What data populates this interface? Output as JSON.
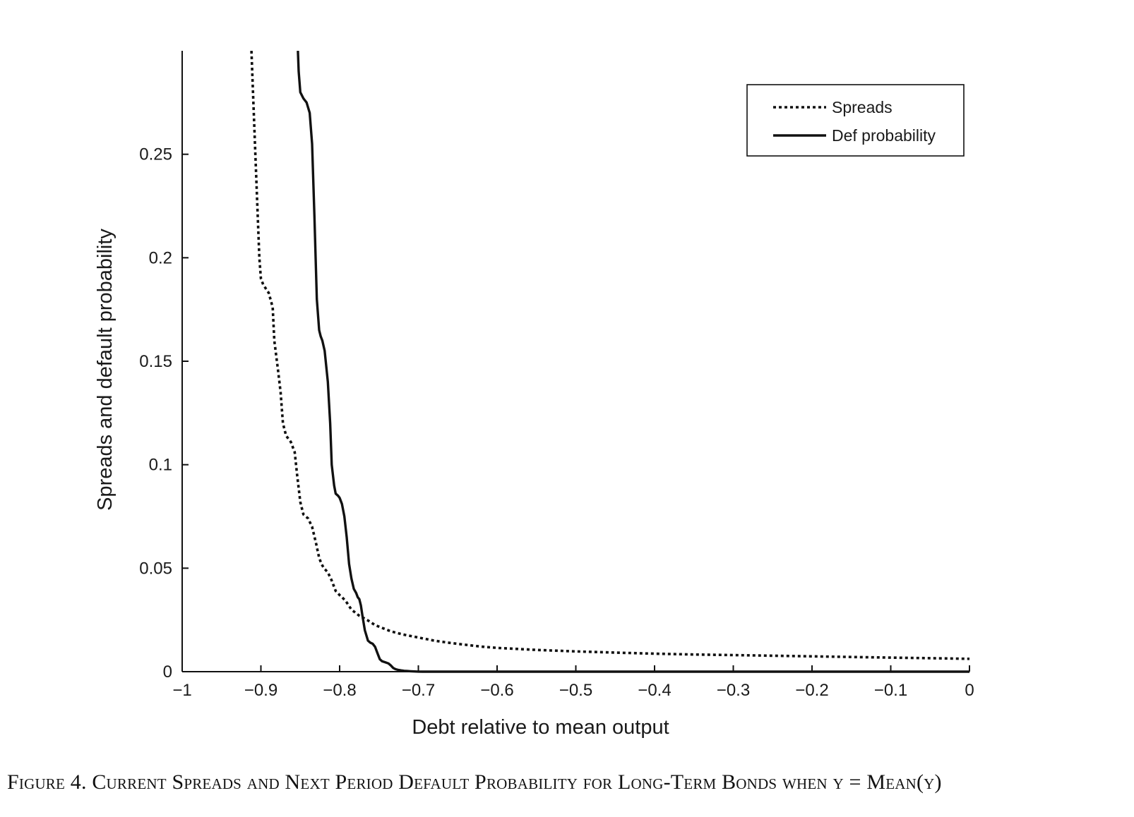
{
  "caption": "Figure 4. Current Spreads and Next Period Default Probability for Long-Term Bonds when y = Mean(y)",
  "chart_data": {
    "type": "line",
    "title": "",
    "xlabel": "Debt relative to mean output",
    "ylabel": "Spreads and default probability",
    "xlim": [
      -1,
      0
    ],
    "ylim": [
      0,
      0.3
    ],
    "xticks": [
      -1,
      -0.9,
      -0.8,
      -0.7,
      -0.6,
      -0.5,
      -0.4,
      -0.3,
      -0.2,
      -0.1,
      0
    ],
    "xtick_labels": [
      "−1",
      "−0.9",
      "−0.8",
      "−0.7",
      "−0.6",
      "−0.5",
      "−0.4",
      "−0.3",
      "−0.2",
      "−0.1",
      "0"
    ],
    "yticks": [
      0,
      0.05,
      0.1,
      0.15,
      0.2,
      0.25
    ],
    "ytick_labels": [
      "0",
      "0.05",
      "0.1",
      "0.15",
      "0.2",
      "0.25"
    ],
    "grid": false,
    "legend_position": "top-right",
    "series": [
      {
        "name": "Spreads",
        "style": "dotted",
        "color": "#111111",
        "x": [
          -0.912,
          -0.91,
          -0.905,
          -0.902,
          -0.9,
          -0.897,
          -0.89,
          -0.885,
          -0.883,
          -0.878,
          -0.875,
          -0.872,
          -0.868,
          -0.862,
          -0.857,
          -0.854,
          -0.85,
          -0.846,
          -0.84,
          -0.835,
          -0.83,
          -0.826,
          -0.823,
          -0.82,
          -0.815,
          -0.81,
          -0.805,
          -0.8,
          -0.797,
          -0.792,
          -0.785,
          -0.775,
          -0.765,
          -0.755,
          -0.745,
          -0.735,
          -0.72,
          -0.7,
          -0.68,
          -0.66,
          -0.64,
          -0.62,
          -0.6,
          -0.55,
          -0.5,
          -0.45,
          -0.4,
          -0.35,
          -0.3,
          -0.25,
          -0.2,
          -0.15,
          -0.1,
          -0.05,
          0
        ],
        "y": [
          0.3,
          0.28,
          0.23,
          0.2,
          0.19,
          0.187,
          0.183,
          0.176,
          0.16,
          0.145,
          0.135,
          0.12,
          0.114,
          0.111,
          0.106,
          0.095,
          0.082,
          0.076,
          0.074,
          0.07,
          0.062,
          0.055,
          0.052,
          0.05,
          0.048,
          0.044,
          0.039,
          0.037,
          0.036,
          0.034,
          0.03,
          0.027,
          0.025,
          0.0225,
          0.021,
          0.0195,
          0.018,
          0.0165,
          0.015,
          0.0139,
          0.013,
          0.0121,
          0.0115,
          0.0105,
          0.0098,
          0.0092,
          0.0087,
          0.0083,
          0.008,
          0.0077,
          0.0074,
          0.0071,
          0.0068,
          0.0065,
          0.0062
        ]
      },
      {
        "name": "Def probability",
        "style": "solid",
        "color": "#111111",
        "x": [
          -0.853,
          -0.852,
          -0.85,
          -0.846,
          -0.842,
          -0.838,
          -0.835,
          -0.832,
          -0.829,
          -0.826,
          -0.824,
          -0.822,
          -0.819,
          -0.815,
          -0.812,
          -0.81,
          -0.807,
          -0.805,
          -0.802,
          -0.8,
          -0.797,
          -0.794,
          -0.791,
          -0.788,
          -0.785,
          -0.782,
          -0.779,
          -0.777,
          -0.775,
          -0.773,
          -0.771,
          -0.768,
          -0.764,
          -0.761,
          -0.758,
          -0.755,
          -0.752,
          -0.749,
          -0.746,
          -0.742,
          -0.738,
          -0.735,
          -0.732,
          -0.729,
          -0.726,
          -0.722,
          -0.718,
          -0.714,
          -0.71,
          -0.705,
          -0.7,
          -0.695,
          -0.69,
          -0.685,
          -0.68,
          -0.675,
          -0.67,
          -0.66,
          -0.65,
          -0.64,
          -0.62,
          -0.6,
          -0.5,
          -0.4,
          -0.3,
          -0.2,
          -0.1,
          0
        ],
        "y": [
          0.3,
          0.29,
          0.28,
          0.277,
          0.275,
          0.27,
          0.255,
          0.22,
          0.18,
          0.165,
          0.162,
          0.16,
          0.155,
          0.14,
          0.12,
          0.1,
          0.09,
          0.086,
          0.085,
          0.084,
          0.081,
          0.075,
          0.065,
          0.052,
          0.045,
          0.04,
          0.038,
          0.036,
          0.035,
          0.032,
          0.027,
          0.02,
          0.015,
          0.014,
          0.0135,
          0.012,
          0.009,
          0.006,
          0.005,
          0.0045,
          0.004,
          0.003,
          0.0018,
          0.0012,
          0.0009,
          0.0006,
          0.0004,
          0.0003,
          0.0002,
          0.0001,
          5e-05,
          0,
          0,
          0,
          0,
          0,
          0,
          0,
          0,
          0,
          0,
          0,
          0,
          0,
          0,
          0,
          0,
          0
        ]
      }
    ]
  }
}
